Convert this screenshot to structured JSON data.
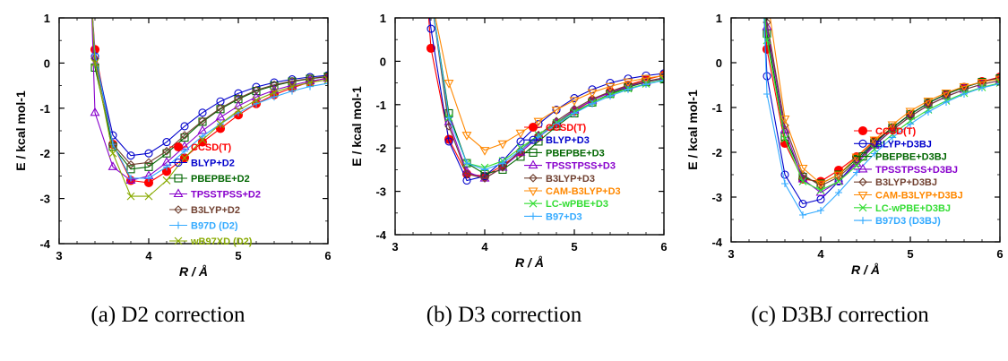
{
  "chart_data": [
    {
      "type": "line",
      "caption": "(a) D2 correction",
      "xlabel": "R / Å",
      "ylabel": "E / kcal mol-1",
      "xlim": [
        3,
        6
      ],
      "ylim": [
        -4,
        1
      ],
      "xticks": [
        3,
        4,
        5,
        6
      ],
      "yticks": [
        1,
        0,
        -1,
        -2,
        -3,
        -4
      ],
      "x": [
        3.4,
        3.6,
        3.8,
        4.0,
        4.2,
        4.4,
        4.6,
        4.8,
        5.0,
        5.2,
        5.4,
        5.6,
        5.8,
        6.0
      ],
      "series": [
        {
          "name": "CCSD(T)",
          "color": "#ff0000",
          "marker": "filled-circle",
          "values": [
            0.3,
            -1.8,
            -2.6,
            -2.65,
            -2.4,
            -2.1,
            -1.75,
            -1.45,
            -1.15,
            -0.9,
            -0.7,
            -0.55,
            -0.42,
            -0.32
          ]
        },
        {
          "name": "BLYP+D2",
          "color": "#0000cc",
          "marker": "open-circle",
          "values": [
            0.15,
            -1.6,
            -2.05,
            -2.0,
            -1.75,
            -1.4,
            -1.1,
            -0.85,
            -0.67,
            -0.53,
            -0.43,
            -0.36,
            -0.31,
            -0.27
          ]
        },
        {
          "name": "PBEPBE+D2",
          "color": "#006600",
          "marker": "open-square",
          "values": [
            -0.1,
            -1.85,
            -2.35,
            -2.3,
            -2.0,
            -1.65,
            -1.3,
            -1.02,
            -0.8,
            -0.62,
            -0.5,
            -0.41,
            -0.35,
            -0.3
          ]
        },
        {
          "name": "TPSSTPSS+D2",
          "color": "#8800cc",
          "marker": "open-triangle",
          "values": [
            -1.1,
            -2.3,
            -2.6,
            -2.5,
            -2.2,
            -1.85,
            -1.5,
            -1.2,
            -0.95,
            -0.75,
            -0.6,
            -0.49,
            -0.4,
            -0.34
          ]
        },
        {
          "name": "B3LYP+D2",
          "color": "#704030",
          "marker": "open-diamond",
          "values": [
            0.1,
            -1.8,
            -2.25,
            -2.2,
            -1.95,
            -1.6,
            -1.28,
            -1.0,
            -0.78,
            -0.6,
            -0.48,
            -0.4,
            -0.34,
            -0.29
          ]
        },
        {
          "name": "B97D (D2)",
          "color": "#33aaff",
          "marker": "plus",
          "values": [
            0.2,
            -1.8,
            -2.55,
            -2.55,
            -2.3,
            -1.95,
            -1.62,
            -1.35,
            -1.1,
            -0.9,
            -0.75,
            -0.62,
            -0.52,
            -0.45
          ]
        },
        {
          "name": "wB97XD (D2)",
          "color": "#88aa00",
          "marker": "cross",
          "values": [
            0.0,
            -2.0,
            -2.95,
            -2.95,
            -2.6,
            -2.1,
            -1.7,
            -1.35,
            -1.05,
            -0.82,
            -0.65,
            -0.52,
            -0.43,
            -0.37
          ]
        }
      ]
    },
    {
      "type": "line",
      "caption": "(b) D3 correction",
      "xlabel": "R / Å",
      "ylabel": "E / kcal mol-1",
      "xlim": [
        3,
        6
      ],
      "ylim": [
        -4,
        1
      ],
      "xticks": [
        3,
        4,
        5,
        6
      ],
      "yticks": [
        1,
        0,
        -1,
        -2,
        -3,
        -4
      ],
      "x": [
        3.4,
        3.6,
        3.8,
        4.0,
        4.2,
        4.4,
        4.6,
        4.8,
        5.0,
        5.2,
        5.4,
        5.6,
        5.8,
        6.0
      ],
      "series": [
        {
          "name": "CCSD(T)",
          "color": "#ff0000",
          "marker": "filled-circle",
          "values": [
            0.3,
            -1.8,
            -2.6,
            -2.65,
            -2.4,
            -2.1,
            -1.75,
            -1.45,
            -1.15,
            -0.9,
            -0.7,
            -0.55,
            -0.42,
            -0.32
          ]
        },
        {
          "name": "BLYP+D3",
          "color": "#0000cc",
          "marker": "open-circle",
          "values": [
            0.75,
            -1.85,
            -2.75,
            -2.65,
            -2.3,
            -1.85,
            -1.45,
            -1.12,
            -0.85,
            -0.65,
            -0.5,
            -0.4,
            -0.33,
            -0.28
          ]
        },
        {
          "name": "PBEPBE+D3",
          "color": "#006600",
          "marker": "open-square",
          "values": [
            1.5,
            -1.2,
            -2.35,
            -2.6,
            -2.5,
            -2.2,
            -1.85,
            -1.5,
            -1.2,
            -0.95,
            -0.75,
            -0.6,
            -0.48,
            -0.4
          ]
        },
        {
          "name": "TPSSTPSS+D3",
          "color": "#8800cc",
          "marker": "open-triangle",
          "values": [
            1.5,
            -1.4,
            -2.55,
            -2.7,
            -2.45,
            -2.1,
            -1.75,
            -1.42,
            -1.13,
            -0.9,
            -0.72,
            -0.58,
            -0.47,
            -0.39
          ]
        },
        {
          "name": "B3LYP+D3",
          "color": "#704030",
          "marker": "open-diamond",
          "values": [
            1.5,
            -1.5,
            -2.6,
            -2.7,
            -2.45,
            -2.05,
            -1.7,
            -1.38,
            -1.1,
            -0.87,
            -0.7,
            -0.56,
            -0.46,
            -0.38
          ]
        },
        {
          "name": "CAM-B3LYP+D3",
          "color": "#ff8800",
          "marker": "open-triangle-down",
          "values": [
            1.5,
            -0.5,
            -1.7,
            -2.05,
            -1.9,
            -1.65,
            -1.38,
            -1.12,
            -0.9,
            -0.72,
            -0.58,
            -0.47,
            -0.39,
            -0.33
          ]
        },
        {
          "name": "LC-wPBE+D3",
          "color": "#33dd33",
          "marker": "cross",
          "values": [
            1.5,
            -1.3,
            -2.35,
            -2.45,
            -2.3,
            -2.0,
            -1.7,
            -1.42,
            -1.17,
            -0.95,
            -0.77,
            -0.63,
            -0.52,
            -0.43
          ]
        },
        {
          "name": "B97+D3",
          "color": "#33aaff",
          "marker": "plus",
          "values": [
            1.5,
            -1.3,
            -2.35,
            -2.5,
            -2.35,
            -2.05,
            -1.75,
            -1.45,
            -1.2,
            -0.98,
            -0.8,
            -0.65,
            -0.53,
            -0.44
          ]
        }
      ]
    },
    {
      "type": "line",
      "caption": "(c) D3BJ correction",
      "xlabel": "R / Å",
      "ylabel": "E / kcal mol-1",
      "xlim": [
        3,
        6
      ],
      "ylim": [
        -4,
        1
      ],
      "xticks": [
        3,
        4,
        5,
        6
      ],
      "yticks": [
        1,
        0,
        -1,
        -2,
        -3,
        -4
      ],
      "x": [
        3.4,
        3.6,
        3.8,
        4.0,
        4.2,
        4.4,
        4.6,
        4.8,
        5.0,
        5.2,
        5.4,
        5.6,
        5.8,
        6.0
      ],
      "series": [
        {
          "name": "CCSD(T)",
          "color": "#ff0000",
          "marker": "filled-circle",
          "values": [
            0.3,
            -1.8,
            -2.6,
            -2.65,
            -2.4,
            -2.1,
            -1.75,
            -1.45,
            -1.15,
            -0.9,
            -0.7,
            -0.55,
            -0.42,
            -0.32
          ]
        },
        {
          "name": "BLYP+D3BJ",
          "color": "#0000cc",
          "marker": "open-circle",
          "values": [
            -0.3,
            -2.5,
            -3.15,
            -3.05,
            -2.65,
            -2.2,
            -1.8,
            -1.45,
            -1.15,
            -0.9,
            -0.7,
            -0.55,
            -0.43,
            -0.34
          ]
        },
        {
          "name": "PBEPBE+D3BJ",
          "color": "#006600",
          "marker": "open-square",
          "values": [
            0.65,
            -1.65,
            -2.55,
            -2.7,
            -2.5,
            -2.15,
            -1.78,
            -1.45,
            -1.15,
            -0.9,
            -0.7,
            -0.55,
            -0.43,
            -0.35
          ]
        },
        {
          "name": "TPSSTPSS+D3BJ",
          "color": "#8800cc",
          "marker": "open-triangle",
          "values": [
            0.8,
            -1.5,
            -2.6,
            -2.9,
            -2.65,
            -2.25,
            -1.85,
            -1.5,
            -1.2,
            -0.95,
            -0.75,
            -0.6,
            -0.48,
            -0.4
          ]
        },
        {
          "name": "B3LYP+D3BJ",
          "color": "#704030",
          "marker": "open-diamond",
          "values": [
            0.9,
            -1.4,
            -2.5,
            -2.75,
            -2.55,
            -2.2,
            -1.83,
            -1.5,
            -1.2,
            -0.95,
            -0.76,
            -0.6,
            -0.48,
            -0.4
          ]
        },
        {
          "name": "CAM-B3LYP+D3BJ",
          "color": "#ff8800",
          "marker": "open-triangle-down",
          "values": [
            1.5,
            -1.25,
            -2.35,
            -2.7,
            -2.5,
            -2.1,
            -1.72,
            -1.38,
            -1.08,
            -0.85,
            -0.67,
            -0.53,
            -0.43,
            -0.36
          ]
        },
        {
          "name": "LC-wPBE+D3BJ",
          "color": "#33dd33",
          "marker": "cross",
          "values": [
            0.5,
            -1.7,
            -2.65,
            -2.85,
            -2.65,
            -2.3,
            -1.93,
            -1.6,
            -1.3,
            -1.05,
            -0.85,
            -0.68,
            -0.55,
            -0.45
          ]
        },
        {
          "name": "B97D3 (D3BJ)",
          "color": "#33aaff",
          "marker": "plus",
          "values": [
            -0.7,
            -2.7,
            -3.4,
            -3.3,
            -2.9,
            -2.45,
            -2.03,
            -1.67,
            -1.37,
            -1.1,
            -0.88,
            -0.7,
            -0.56,
            -0.47
          ]
        }
      ]
    }
  ]
}
